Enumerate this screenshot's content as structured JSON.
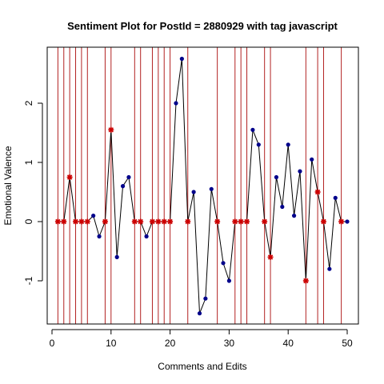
{
  "chart_data": {
    "type": "line",
    "title": "Sentiment Plot for PostId =  2880929  with tag  javascript",
    "xlabel": "Comments and Edits",
    "ylabel": "Emotional Valence",
    "xlim": [
      0,
      50
    ],
    "ylim": [
      -1.5,
      2.75
    ],
    "x_ticks": [
      0,
      10,
      20,
      30,
      40,
      50
    ],
    "y_ticks": [
      -1,
      0,
      1,
      2
    ],
    "x": [
      1,
      2,
      3,
      4,
      5,
      6,
      7,
      8,
      9,
      10,
      11,
      12,
      13,
      14,
      15,
      16,
      17,
      18,
      19,
      20,
      21,
      22,
      23,
      24,
      25,
      26,
      27,
      28,
      29,
      30,
      31,
      32,
      33,
      34,
      35,
      36,
      37,
      38,
      39,
      40,
      41,
      42,
      43,
      44,
      45,
      46,
      47,
      48,
      49,
      50
    ],
    "y": [
      0,
      0,
      0.75,
      0,
      0,
      0,
      0.1,
      -0.25,
      0,
      1.55,
      -0.6,
      0.6,
      0.75,
      0,
      0,
      -0.25,
      0,
      0,
      0,
      0,
      2.0,
      2.75,
      0,
      0.5,
      -1.55,
      -1.3,
      0.55,
      0,
      -0.7,
      -1.0,
      0,
      0,
      0,
      1.55,
      1.3,
      0,
      -0.6,
      0.75,
      0.25,
      1.3,
      0.1,
      0.85,
      -1.0,
      1.05,
      0.5,
      0,
      -0.8,
      0.4,
      0,
      0
    ],
    "edit_points": [
      1,
      2,
      3,
      4,
      5,
      6,
      9,
      10,
      14,
      15,
      17,
      18,
      19,
      20,
      23,
      28,
      31,
      32,
      33,
      36,
      37,
      43,
      45,
      46,
      49
    ],
    "vertical_lines": [
      1,
      2,
      3,
      4,
      5,
      6,
      9,
      10,
      14,
      15,
      17,
      18,
      19,
      20,
      23,
      28,
      31,
      32,
      33,
      36,
      37,
      43,
      45,
      46,
      49
    ],
    "colors": {
      "line": "#000000",
      "comment_point": "#00008B",
      "edit_point": "#CC0000",
      "vertical_line": "#B22222",
      "frame": "#000000"
    }
  }
}
